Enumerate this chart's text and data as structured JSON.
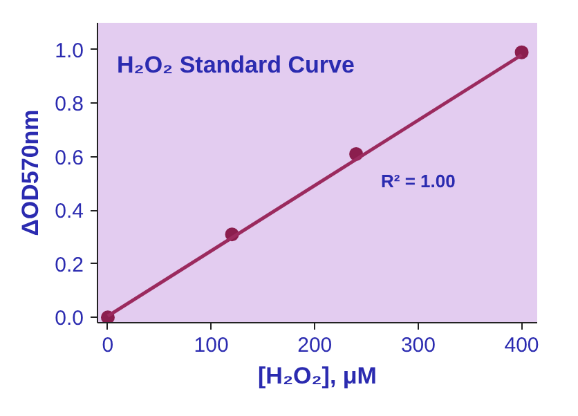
{
  "chart_data": {
    "type": "scatter",
    "title": "H₂O₂ Standard Curve",
    "xlabel": "[H₂O₂], μM",
    "ylabel": "ΔOD570nm",
    "annotations": [
      "R² = 1.00"
    ],
    "x": [
      0,
      120,
      240,
      400
    ],
    "series": [
      {
        "color": "#8b1e4e",
        "marker": "circle",
        "values": [
          0.0,
          0.31,
          0.61,
          0.99
        ]
      },
      {
        "type": "line",
        "color": "#9b2a5e",
        "marker": "none",
        "x": [
          0,
          400
        ],
        "values": [
          0.005,
          0.98
        ]
      }
    ],
    "xlim": [
      -10,
      415
    ],
    "ylim": [
      -0.02,
      1.1
    ],
    "xticks": [
      0,
      100,
      200,
      300,
      400
    ],
    "yticks": [
      {
        "value": 0,
        "label": "0.0"
      },
      0.2,
      0.4,
      0.6,
      0.8,
      {
        "value": 1,
        "label": "1.0"
      }
    ],
    "grid": false
  }
}
